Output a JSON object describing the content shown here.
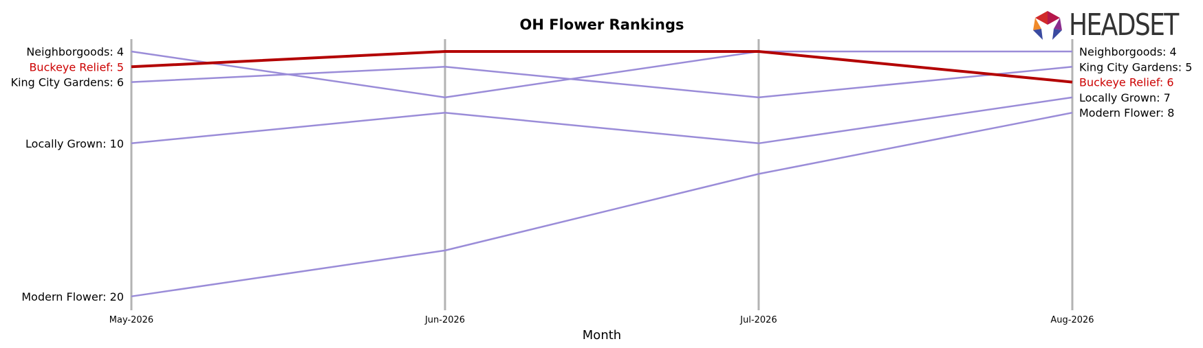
{
  "chart_data": {
    "type": "line",
    "title": "OH Flower Rankings",
    "xlabel": "Month",
    "ylabel": "",
    "x": [
      "May-2026",
      "Jun-2026",
      "Jul-2026",
      "Aug-2026"
    ],
    "y_inverted": true,
    "ylim": [
      21,
      3
    ],
    "grid": "vertical lines at each month",
    "highlight": "Buckeye Relief",
    "series": [
      {
        "name": "Neighborgoods",
        "values": [
          4,
          7,
          4,
          4
        ]
      },
      {
        "name": "King City Gardens",
        "values": [
          6,
          5,
          7,
          5
        ]
      },
      {
        "name": "Locally Grown",
        "values": [
          10,
          8,
          10,
          7
        ]
      },
      {
        "name": "Modern Flower",
        "values": [
          20,
          17,
          12,
          8
        ]
      },
      {
        "name": "Buckeye Relief",
        "values": [
          5,
          4,
          4,
          6
        ]
      }
    ]
  },
  "colors": {
    "highlight": "#b30000",
    "series": "#9a8cd8",
    "gridline": "#b3b3b3",
    "text": "#000000",
    "highlight_text": "#cc0000"
  },
  "logo": {
    "text": "HEADSET"
  }
}
